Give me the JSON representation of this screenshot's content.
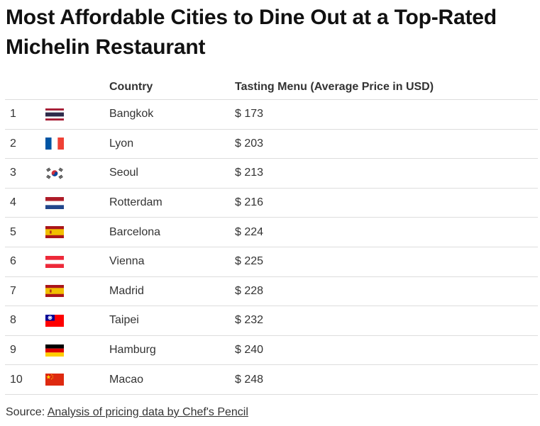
{
  "title": "Most Affordable Cities to Dine Out at a Top-Rated Michelin Restaurant",
  "source": {
    "label": "Source: ",
    "link_text": "Analysis of pricing data by Chef's Pencil"
  },
  "chart_data": {
    "type": "table",
    "columns": [
      "",
      "",
      "Country",
      "Tasting Menu (Average Price in USD)"
    ],
    "rows": [
      {
        "rank": "1",
        "flag": "thailand",
        "city": "Bangkok",
        "price": "$ 173",
        "value": 173
      },
      {
        "rank": "2",
        "flag": "france",
        "city": "Lyon",
        "price": "$ 203",
        "value": 203
      },
      {
        "rank": "3",
        "flag": "south-korea",
        "city": "Seoul",
        "price": "$ 213",
        "value": 213
      },
      {
        "rank": "4",
        "flag": "netherlands",
        "city": "Rotterdam",
        "price": "$ 216",
        "value": 216
      },
      {
        "rank": "5",
        "flag": "spain",
        "city": "Barcelona",
        "price": "$ 224",
        "value": 224
      },
      {
        "rank": "6",
        "flag": "austria",
        "city": "Vienna",
        "price": "$ 225",
        "value": 225
      },
      {
        "rank": "7",
        "flag": "spain",
        "city": "Madrid",
        "price": "$ 228",
        "value": 228
      },
      {
        "rank": "8",
        "flag": "taiwan",
        "city": "Taipei",
        "price": "$ 232",
        "value": 232
      },
      {
        "rank": "9",
        "flag": "germany",
        "city": "Hamburg",
        "price": "$ 240",
        "value": 240
      },
      {
        "rank": "10",
        "flag": "china",
        "city": "Macao",
        "price": "$ 248",
        "value": 248
      }
    ]
  }
}
